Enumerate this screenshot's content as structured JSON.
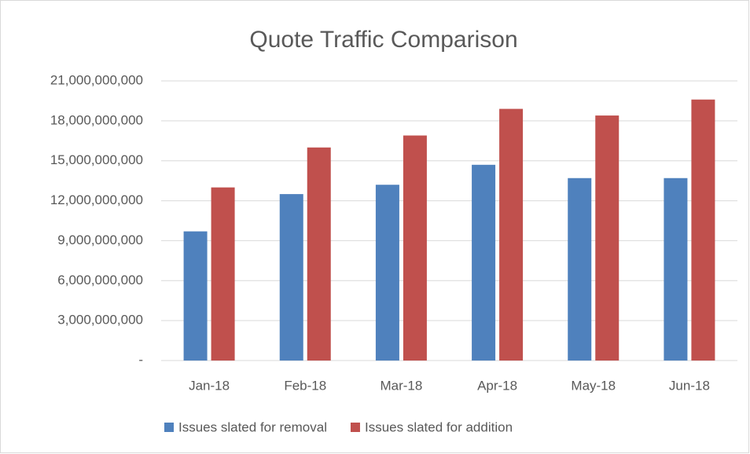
{
  "chart_data": {
    "type": "bar",
    "title": "Quote Traffic Comparison",
    "categories": [
      "Jan-18",
      "Feb-18",
      "Mar-18",
      "Apr-18",
      "May-18",
      "Jun-18"
    ],
    "series": [
      {
        "name": "Issues slated for removal",
        "color": "#4f81bd",
        "values": [
          9700000000,
          12500000000,
          13200000000,
          14700000000,
          13700000000,
          13700000000
        ]
      },
      {
        "name": "Issues slated for addition",
        "color": "#c0504d",
        "values": [
          13000000000,
          16000000000,
          16900000000,
          18900000000,
          18400000000,
          19600000000
        ]
      }
    ],
    "ylim": [
      0,
      21000000000
    ],
    "yticks": [
      {
        "value": 0,
        "label": "-"
      },
      {
        "value": 3000000000,
        "label": "3,000,000,000"
      },
      {
        "value": 6000000000,
        "label": "6,000,000,000"
      },
      {
        "value": 9000000000,
        "label": "9,000,000,000"
      },
      {
        "value": 12000000000,
        "label": "12,000,000,000"
      },
      {
        "value": 15000000000,
        "label": "15,000,000,000"
      },
      {
        "value": 18000000000,
        "label": "18,000,000,000"
      },
      {
        "value": 21000000000,
        "label": "21,000,000,000"
      }
    ],
    "grid": true,
    "legend": "bottom"
  }
}
